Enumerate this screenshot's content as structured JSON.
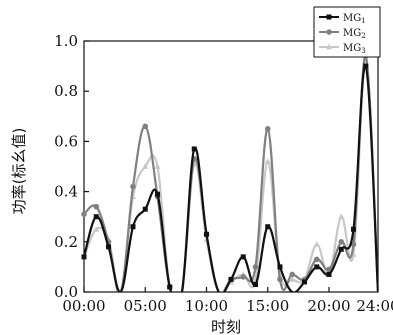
{
  "chart_data": {
    "type": "line",
    "xlabel": "时刻",
    "ylabel": "功率(标幺值)",
    "xlim": [
      1,
      25
    ],
    "ylim": [
      0,
      1.0
    ],
    "x_ticks": [
      {
        "value": 1,
        "label": "00:00"
      },
      {
        "value": 6,
        "label": "05:00"
      },
      {
        "value": 11,
        "label": "10:00"
      },
      {
        "value": 16,
        "label": "15:00"
      },
      {
        "value": 21,
        "label": "20:00"
      },
      {
        "value": 25,
        "label": "24:00"
      }
    ],
    "y_ticks": [
      "0.0",
      "0.2",
      "0.4",
      "0.6",
      "0.8",
      "1.0"
    ],
    "legend_position": "top-right",
    "x": [
      1,
      2,
      3,
      4,
      5,
      6,
      7,
      8,
      9,
      10,
      11,
      12,
      13,
      14,
      15,
      16,
      17,
      18,
      19,
      20,
      21,
      22,
      23,
      24,
      25
    ],
    "series": [
      {
        "name": "MG",
        "sub": "1",
        "color": "#111111",
        "marker": "square",
        "values": [
          0.14,
          0.3,
          0.18,
          0.0,
          0.26,
          0.33,
          0.39,
          0.02,
          0.0,
          0.57,
          0.23,
          0.0,
          0.05,
          0.14,
          0.03,
          0.26,
          0.1,
          0.0,
          0.04,
          0.1,
          0.07,
          0.17,
          0.25,
          0.9,
          0.0
        ]
      },
      {
        "name": "MG",
        "sub": "2",
        "color": "#808080",
        "marker": "circle",
        "values": [
          0.31,
          0.34,
          0.2,
          0.0,
          0.42,
          0.66,
          0.38,
          0.02,
          0.0,
          0.53,
          0.23,
          0.0,
          0.05,
          0.06,
          0.1,
          0.65,
          0.05,
          0.07,
          0.05,
          0.13,
          0.09,
          0.2,
          0.19,
          0.94,
          0.0
        ]
      },
      {
        "name": "MG",
        "sub": "3",
        "color": "#c8c8c8",
        "marker": "triangle",
        "values": [
          0.14,
          0.25,
          0.21,
          0.0,
          0.38,
          0.5,
          0.5,
          0.02,
          0.0,
          0.51,
          0.21,
          0.0,
          0.04,
          0.07,
          0.05,
          0.52,
          0.07,
          0.05,
          0.05,
          0.19,
          0.07,
          0.3,
          0.15,
          0.91,
          0.0
        ]
      }
    ]
  }
}
